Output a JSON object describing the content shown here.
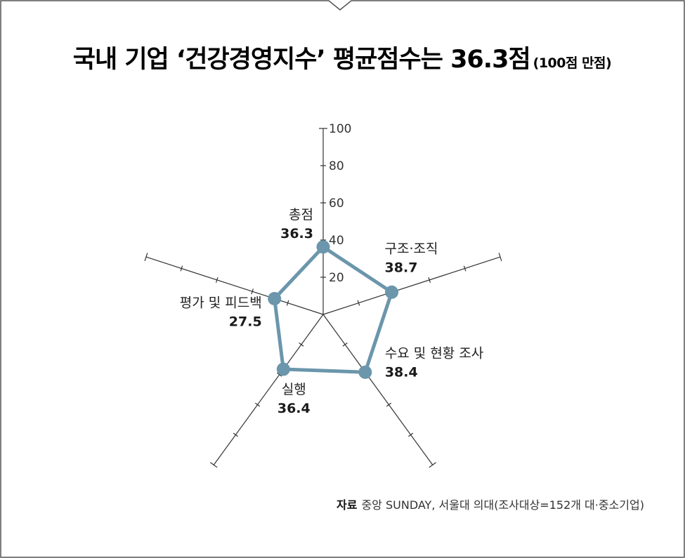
{
  "chart_data": {
    "type": "radar",
    "title": "국내 기업 ‘건강경영지수’ 평균점수는 36.3점",
    "subtitle": "(100점 만점)",
    "rlim": [
      0,
      100
    ],
    "ticks": [
      20,
      40,
      60,
      80,
      100
    ],
    "axes": [
      "총점",
      "구조·조직",
      "수요 및 현황 조사",
      "실행",
      "평가 및 피드백"
    ],
    "values": [
      36.3,
      38.7,
      38.4,
      36.4,
      27.5
    ],
    "value_labels": [
      "36.3",
      "38.7",
      "38.4",
      "36.4",
      "27.5"
    ],
    "grid": false,
    "source_label": "자료",
    "source_text": "중앙 SUNDAY, 서울대 의대(조사대상=152개 대·중소기업)",
    "colors": {
      "series": "#6b96ab",
      "axis": "#333333",
      "frame": "#555555"
    }
  }
}
